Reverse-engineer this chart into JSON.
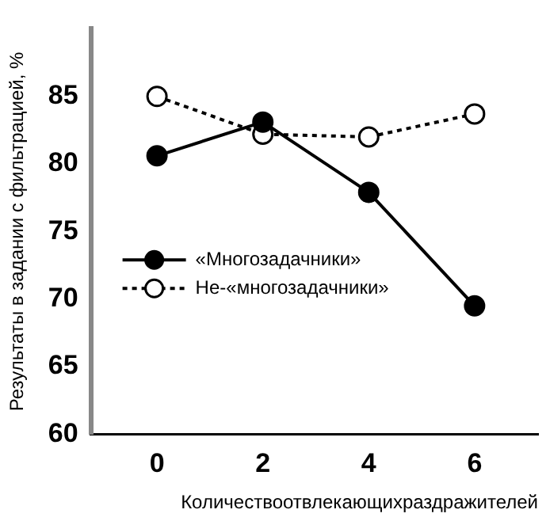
{
  "chart_data": {
    "type": "line",
    "xlabel": "Количествоотвлекающихраздражителей",
    "ylabel": "Результаты в задании с фильтрацией, %",
    "x": [
      0,
      2,
      4,
      6
    ],
    "xlim": [
      -1.25,
      7.2
    ],
    "xticks": [
      0,
      2,
      4,
      6
    ],
    "ylim": [
      60,
      90
    ],
    "yticks": [
      60,
      65,
      70,
      75,
      80,
      85
    ],
    "series": [
      {
        "name": "«Многозадачники»",
        "color": "#000000",
        "values": [
          80.6,
          83.1,
          77.9,
          69.5
        ],
        "marker": "circle",
        "line_style": "solid"
      },
      {
        "name": "Не-«многозадачники»",
        "color": "#000000",
        "values": [
          85,
          82.2,
          82,
          83.7
        ],
        "marker": "circle",
        "line_style": "dotted"
      }
    ],
    "legend": "center left",
    "grid": false
  }
}
